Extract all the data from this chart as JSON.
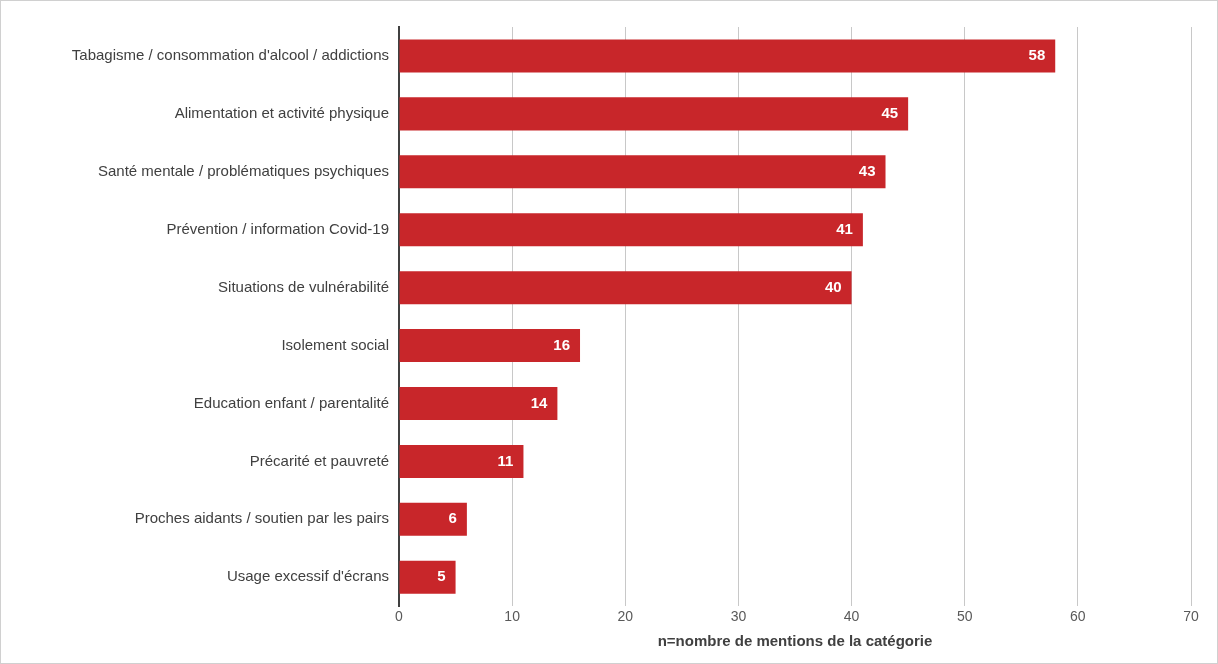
{
  "chart_data": {
    "type": "bar",
    "orientation": "horizontal",
    "xlabel": "n=nombre de mentions de la catégorie",
    "categories": [
      "Tabagisme / consommation d'alcool / addictions",
      "Alimentation et activité physique",
      "Santé mentale / problématiques psychiques",
      "Prévention / information Covid-19",
      "Situations de vulnérabilité",
      "Isolement social",
      "Education enfant / parentalité",
      "Précarité et pauvreté",
      "Proches aidants / soutien par les pairs",
      "Usage excessif d'écrans"
    ],
    "values": [
      58,
      45,
      43,
      41,
      40,
      16,
      14,
      11,
      6,
      5
    ],
    "color": "#c8262a",
    "xlim": [
      0,
      70
    ],
    "xticks": [
      0,
      10,
      20,
      30,
      40,
      50,
      60,
      70
    ],
    "grid": "x",
    "legend": false,
    "data_labels": true
  }
}
